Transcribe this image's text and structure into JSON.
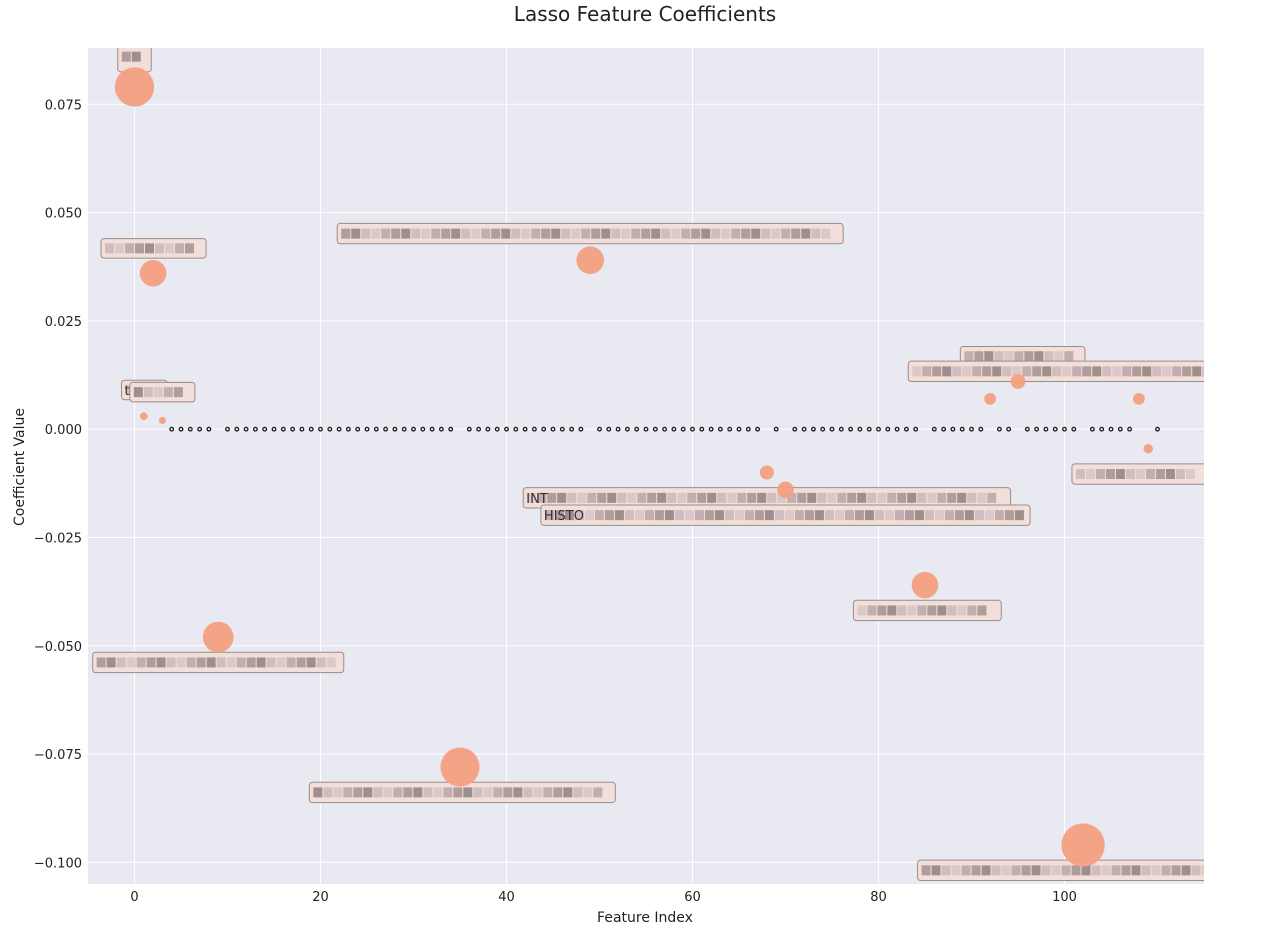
{
  "chart_data": {
    "type": "scatter",
    "title": "Lasso Feature Coefficients",
    "xlabel": "Feature Index",
    "ylabel": "Coefficient Value",
    "xlim": [
      -5,
      115
    ],
    "ylim": [
      -0.105,
      0.088
    ],
    "x_ticks": [
      0,
      20,
      40,
      60,
      80,
      100
    ],
    "x_tick_labels": [
      "0",
      "20",
      "40",
      "60",
      "80",
      "100"
    ],
    "y_ticks": [
      -0.1,
      -0.075,
      -0.05,
      -0.025,
      0.0,
      0.025,
      0.05,
      0.075
    ],
    "y_tick_labels": [
      "−0.100",
      "−0.075",
      "−0.050",
      "−0.025",
      "0.000",
      "0.025",
      "0.050",
      "0.075"
    ],
    "grid": true,
    "colors": {
      "plot_bg": "#e9e9f1",
      "grid": "#ffffff",
      "nonzero_point": "#f4a07f",
      "zero_point": "#1a1a1a",
      "annotation_fill": "#f3dfd9",
      "annotation_border": "#9a8c8c"
    },
    "nonzero_points": [
      {
        "x": 0,
        "y": 0.079
      },
      {
        "x": 1,
        "y": 0.003
      },
      {
        "x": 2,
        "y": 0.036
      },
      {
        "x": 3,
        "y": 0.002
      },
      {
        "x": 9,
        "y": -0.048
      },
      {
        "x": 35,
        "y": -0.078
      },
      {
        "x": 49,
        "y": 0.039
      },
      {
        "x": 68,
        "y": -0.01
      },
      {
        "x": 70,
        "y": -0.014
      },
      {
        "x": 85,
        "y": -0.036
      },
      {
        "x": 92,
        "y": 0.007
      },
      {
        "x": 95,
        "y": 0.011
      },
      {
        "x": 102,
        "y": -0.096
      },
      {
        "x": 108,
        "y": 0.007
      },
      {
        "x": 109,
        "y": -0.0045
      }
    ],
    "zero_points_x": [
      4,
      5,
      6,
      7,
      8,
      10,
      11,
      12,
      13,
      14,
      15,
      16,
      17,
      18,
      19,
      20,
      21,
      22,
      23,
      24,
      25,
      26,
      27,
      28,
      29,
      30,
      31,
      32,
      33,
      34,
      36,
      37,
      38,
      39,
      40,
      41,
      42,
      43,
      44,
      45,
      46,
      47,
      48,
      50,
      51,
      52,
      53,
      54,
      55,
      56,
      57,
      58,
      59,
      60,
      61,
      62,
      63,
      64,
      65,
      66,
      67,
      69,
      71,
      72,
      73,
      74,
      75,
      76,
      77,
      78,
      79,
      80,
      81,
      82,
      83,
      84,
      86,
      87,
      88,
      89,
      90,
      91,
      93,
      94,
      96,
      97,
      98,
      99,
      100,
      101,
      103,
      104,
      105,
      106,
      107,
      110
    ],
    "annotations": [
      {
        "label": "",
        "x": 0.5,
        "y": 0.085
      },
      {
        "label": "t",
        "x": 1,
        "y": 0.0088
      },
      {
        "label": "INT",
        "x": 47,
        "y": -0.0157
      },
      {
        "label": "HISTO",
        "x": 64,
        "y": -0.0197
      }
    ]
  }
}
